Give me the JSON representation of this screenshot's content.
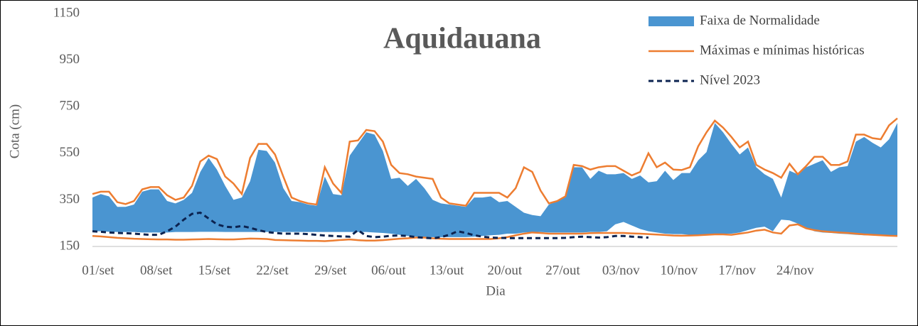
{
  "chart_data": {
    "type": "band-lines",
    "title": "Aquidauana",
    "x_label": "Dia",
    "y_label": "Cota (cm)",
    "categories": [
      "01/set",
      null,
      null,
      null,
      null,
      null,
      null,
      "08/set",
      null,
      null,
      null,
      null,
      null,
      null,
      "15/set",
      null,
      null,
      null,
      null,
      null,
      null,
      "22/set",
      null,
      null,
      null,
      null,
      null,
      null,
      "29/set",
      null,
      null,
      null,
      null,
      null,
      null,
      "06/out",
      null,
      null,
      null,
      null,
      null,
      null,
      "13/out",
      null,
      null,
      null,
      null,
      null,
      null,
      "20/out",
      null,
      null,
      null,
      null,
      null,
      null,
      "27/out",
      null,
      null,
      null,
      null,
      null,
      null,
      "03/nov",
      null,
      null,
      null,
      null,
      null,
      null,
      "10/nov",
      null,
      null,
      null,
      null,
      null,
      null,
      "17/nov",
      null,
      null,
      null,
      null,
      null,
      null,
      "24/nov",
      null,
      null,
      null,
      null,
      null,
      null,
      null,
      null,
      null,
      null,
      null,
      null,
      null
    ],
    "ylim": [
      150,
      1150
    ],
    "yticks": [
      150,
      350,
      550,
      750,
      950,
      1150
    ],
    "legend": "top-right",
    "series": [
      {
        "name": "Faixa de Normalidade",
        "color": "#4a95d1",
        "values": [
          360,
          375,
          365,
          320,
          320,
          330,
          385,
          395,
          395,
          345,
          335,
          350,
          380,
          470,
          530,
          480,
          410,
          350,
          360,
          430,
          565,
          560,
          510,
          400,
          345,
          340,
          330,
          325,
          450,
          375,
          370,
          540,
          590,
          640,
          630,
          560,
          440,
          445,
          410,
          440,
          400,
          350,
          335,
          330,
          325,
          320,
          360,
          360,
          365,
          340,
          345,
          320,
          295,
          285,
          280,
          330,
          345,
          365,
          490,
          490,
          440,
          475,
          460,
          460,
          465,
          440,
          455,
          425,
          430,
          475,
          435,
          465,
          465,
          520,
          555,
          680,
          640,
          590,
          545,
          575,
          490,
          460,
          440,
          360,
          475,
          460,
          490,
          505,
          520,
          470,
          490,
          495,
          600,
          620,
          595,
          575,
          610,
          680
        ],
        "low": [
          215,
          215,
          213,
          212,
          212,
          212,
          210,
          210,
          210,
          210,
          212,
          212,
          212,
          213,
          213,
          213,
          212,
          212,
          212,
          212,
          212,
          212,
          212,
          212,
          212,
          212,
          212,
          212,
          212,
          212,
          212,
          212,
          212,
          212,
          210,
          208,
          205,
          200,
          195,
          192,
          190,
          190,
          190,
          190,
          190,
          190,
          192,
          195,
          198,
          200,
          205,
          205,
          210,
          212,
          212,
          210,
          210,
          210,
          210,
          210,
          212,
          212,
          215,
          245,
          255,
          240,
          225,
          215,
          210,
          205,
          203,
          203,
          200,
          200,
          200,
          202,
          205,
          205,
          210,
          220,
          230,
          235,
          215,
          265,
          262,
          248,
          232,
          215,
          210,
          208,
          205,
          203,
          200,
          198,
          198,
          196,
          195,
          195
        ]
      },
      {
        "name": "Máximas e mínimas históricas",
        "color": "#ed7d31",
        "values": [
          375,
          385,
          385,
          340,
          332,
          345,
          395,
          405,
          405,
          370,
          350,
          360,
          410,
          515,
          540,
          525,
          450,
          420,
          375,
          530,
          590,
          590,
          545,
          450,
          360,
          345,
          335,
          330,
          490,
          420,
          380,
          600,
          605,
          650,
          645,
          600,
          500,
          465,
          460,
          450,
          445,
          440,
          360,
          335,
          330,
          325,
          380,
          380,
          380,
          380,
          360,
          400,
          490,
          470,
          390,
          335,
          345,
          365,
          500,
          495,
          480,
          490,
          495,
          495,
          475,
          455,
          470,
          550,
          490,
          510,
          480,
          478,
          490,
          580,
          640,
          690,
          660,
          620,
          575,
          600,
          500,
          480,
          465,
          445,
          505,
          460,
          495,
          535,
          535,
          500,
          500,
          515,
          630,
          630,
          615,
          610,
          670,
          700
        ],
        "low": [
          195,
          193,
          190,
          187,
          185,
          183,
          182,
          181,
          180,
          180,
          179,
          179,
          180,
          181,
          182,
          181,
          180,
          180,
          182,
          184,
          183,
          182,
          178,
          177,
          176,
          175,
          174,
          174,
          173,
          175,
          178,
          180,
          177,
          175,
          175,
          177,
          180,
          183,
          185,
          188,
          188,
          185,
          183,
          182,
          182,
          182,
          182,
          182,
          182,
          185,
          190,
          198,
          205,
          210,
          208,
          205,
          205,
          205,
          205,
          205,
          207,
          208,
          208,
          208,
          208,
          206,
          205,
          203,
          201,
          199,
          197,
          196,
          197,
          198,
          200,
          202,
          202,
          200,
          205,
          210,
          218,
          222,
          210,
          205,
          240,
          245,
          228,
          220,
          215,
          212,
          210,
          208,
          205,
          202,
          200,
          198,
          196,
          195
        ]
      },
      {
        "name": "Nível 2023",
        "color": "#0c2350",
        "dashed": true,
        "values": [
          215,
          213,
          210,
          208,
          207,
          205,
          202,
          200,
          200,
          215,
          235,
          265,
          290,
          295,
          270,
          245,
          235,
          232,
          238,
          230,
          220,
          212,
          208,
          205,
          205,
          205,
          203,
          200,
          197,
          195,
          193,
          192,
          220,
          195,
          190,
          192,
          196,
          197,
          195,
          190,
          187,
          185,
          190,
          200,
          215,
          208,
          198,
          192,
          188,
          187,
          186,
          186,
          186,
          186,
          186,
          186,
          186,
          187,
          190,
          192,
          190,
          188,
          190,
          195,
          195,
          192,
          190,
          188,
          null,
          null,
          null,
          null,
          null,
          null,
          null,
          null,
          null,
          null,
          null,
          null,
          null,
          null,
          null,
          null,
          null,
          null,
          null,
          null,
          null,
          null,
          null,
          null,
          null,
          null,
          null,
          null,
          null,
          null
        ]
      }
    ]
  }
}
